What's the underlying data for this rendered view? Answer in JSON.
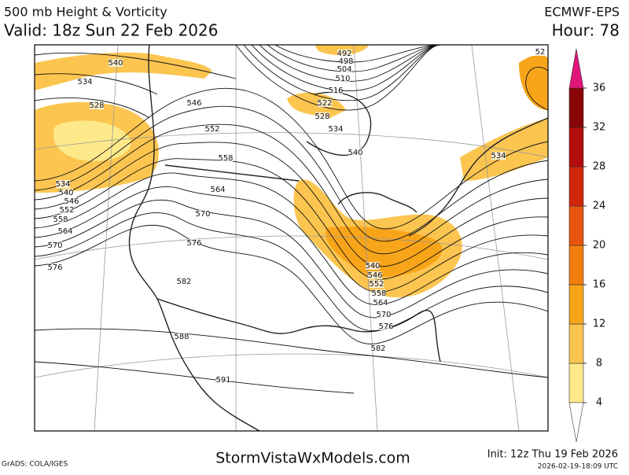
{
  "header": {
    "title": "500 mb Height & Vorticity",
    "valid": "Valid: 18z Sun 22 Feb 2026",
    "model": "ECMWF-EPS",
    "hour": "Hour: 78"
  },
  "colorbar": {
    "ticks": [
      4,
      8,
      12,
      16,
      20,
      24,
      28,
      32,
      36
    ],
    "colors": [
      "#fde98a",
      "#fbc550",
      "#f9a51a",
      "#f27e10",
      "#e6540e",
      "#d2260b",
      "#b40d0d",
      "#8a0606"
    ],
    "over_color": "#e0157a",
    "under_color": "#ffffff"
  },
  "contour_labels": [
    "540",
    "534",
    "528",
    "546",
    "552",
    "558",
    "564",
    "570",
    "576",
    "582",
    "588",
    "591",
    "534",
    "540",
    "546",
    "552",
    "558",
    "564",
    "570",
    "576",
    "492",
    "498",
    "504",
    "510",
    "516",
    "522",
    "528",
    "534",
    "540",
    "540",
    "546",
    "552",
    "558",
    "564",
    "570",
    "576",
    "582",
    "534",
    "52"
  ],
  "footer": {
    "credit": "GrADS: COLA/IGES",
    "site": "StormVistaWxModels.com",
    "init": "Init: 12z Thu 19 Feb 2026",
    "stamp": "2026-02-19-18:09 UTC"
  }
}
